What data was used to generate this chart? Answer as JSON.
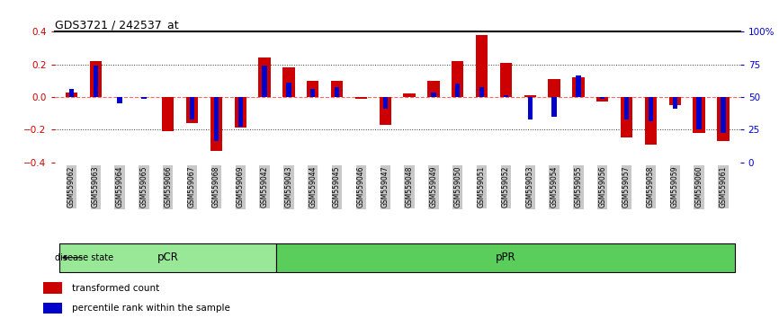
{
  "title": "GDS3721 / 242537_at",
  "samples": [
    "GSM559062",
    "GSM559063",
    "GSM559064",
    "GSM559065",
    "GSM559066",
    "GSM559067",
    "GSM559068",
    "GSM559069",
    "GSM559042",
    "GSM559043",
    "GSM559044",
    "GSM559045",
    "GSM559046",
    "GSM559047",
    "GSM559048",
    "GSM559049",
    "GSM559050",
    "GSM559051",
    "GSM559052",
    "GSM559053",
    "GSM559054",
    "GSM559055",
    "GSM559056",
    "GSM559057",
    "GSM559058",
    "GSM559059",
    "GSM559060",
    "GSM559061"
  ],
  "red_values": [
    0.03,
    0.22,
    0.0,
    0.0,
    -0.21,
    -0.16,
    -0.33,
    -0.19,
    0.24,
    0.18,
    0.1,
    0.1,
    -0.01,
    -0.17,
    0.02,
    0.1,
    0.22,
    0.38,
    0.21,
    0.01,
    0.11,
    0.12,
    -0.03,
    -0.25,
    -0.29,
    -0.05,
    -0.22,
    -0.27
  ],
  "blue_values": [
    0.05,
    0.19,
    -0.04,
    -0.01,
    0.0,
    -0.14,
    -0.27,
    -0.18,
    0.19,
    0.09,
    0.05,
    0.06,
    0.0,
    -0.07,
    0.0,
    0.03,
    0.08,
    0.06,
    0.01,
    -0.14,
    -0.12,
    0.13,
    -0.01,
    -0.14,
    -0.15,
    -0.07,
    -0.2,
    -0.22
  ],
  "pCR_count": 9,
  "pPR_count": 19,
  "ylim": [
    -0.4,
    0.4
  ],
  "yticks_left": [
    -0.4,
    -0.2,
    0.0,
    0.2,
    0.4
  ],
  "right_tick_positions": [
    -0.4,
    -0.2,
    0.0,
    0.2,
    0.4
  ],
  "right_tick_labels": [
    "0",
    "25",
    "50",
    "75",
    "100%"
  ],
  "pCR_color": "#98E898",
  "pPR_color": "#5ACD5A",
  "bar_color_red": "#CC0000",
  "bar_color_blue": "#0000CC",
  "tick_label_bg": "#C8C8C8",
  "zero_line_color": "#FF6666",
  "dotted_line_color": "#333333",
  "title_fontsize": 9,
  "bar_width": 0.5,
  "blue_bar_width": 0.2
}
